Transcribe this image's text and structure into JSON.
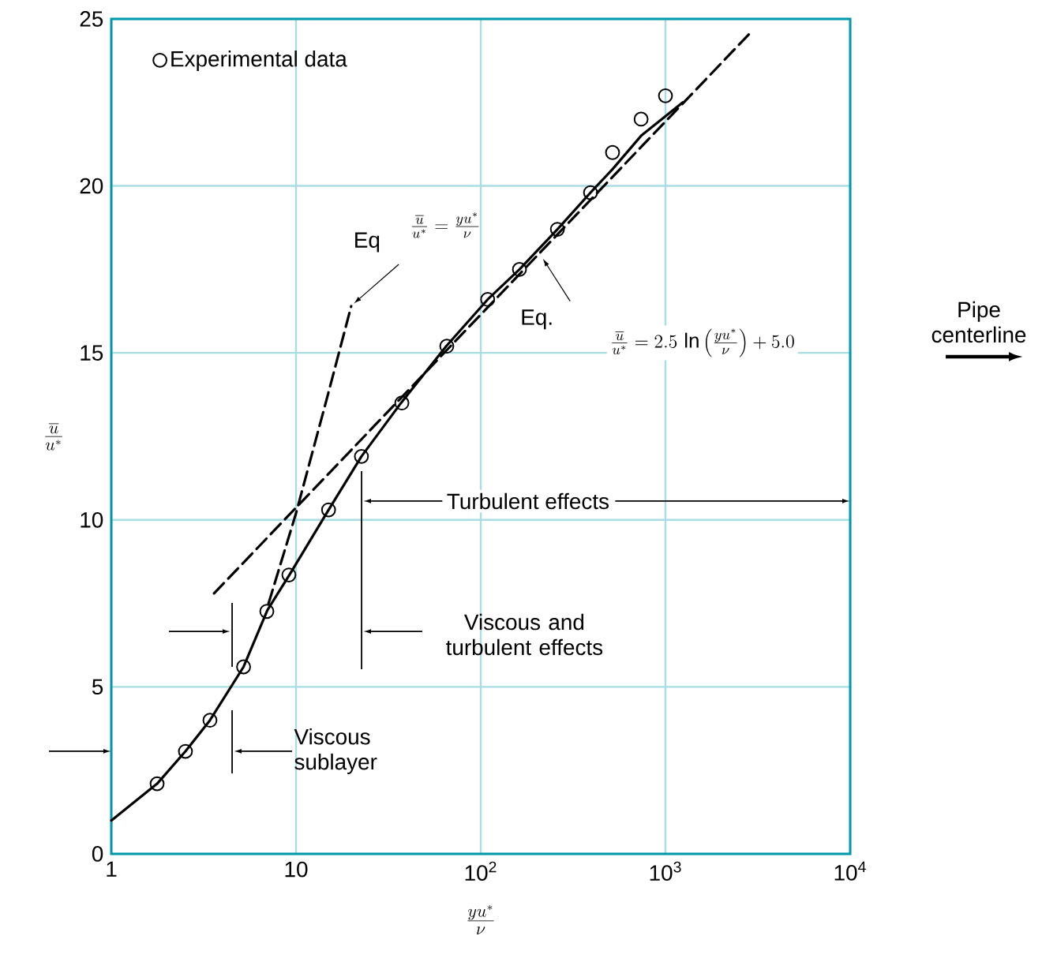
{
  "chart_data": {
    "type": "line",
    "xlabel": "\\frac{yu^*}{\\nu}",
    "ylabel": "\\frac{\\overline{u}}{u^*}",
    "log": "x",
    "grid": true,
    "legend": "top left",
    "xlim": [
      1,
      10000
    ],
    "ylim": [
      0,
      25
    ],
    "xticks": [
      1,
      10,
      {
        "value": 100,
        "label": "10$^{2}$"
      },
      {
        "value": 1000,
        "label": "10$^{3}$"
      },
      {
        "value": 10000,
        "label": "10$^{4}$"
      }
    ],
    "yticks": [
      0,
      5,
      10,
      15,
      20,
      25
    ],
    "series": [
      {
        "name": "Experimental data",
        "type": "scatter",
        "marker": "circle",
        "color": "#000000",
        "x": [
          1.77,
          2.52,
          3.42,
          5.2,
          6.95,
          9.15,
          15,
          22.6,
          37.4,
          65.5,
          109,
          162,
          260,
          393,
          517,
          738,
          1000
        ],
        "values": [
          2.1,
          3.07,
          4.0,
          5.6,
          7.26,
          8.35,
          10.3,
          11.9,
          13.5,
          15.2,
          16.6,
          17.5,
          18.7,
          19.8,
          21.0,
          22.0,
          22.7
        ]
      },
      {
        "line_style": "solid",
        "color": "#000000",
        "x": [
          1,
          1.77,
          2.52,
          3.42,
          5.2,
          7.0,
          9.2,
          15,
          22.6,
          37,
          65,
          109,
          162,
          260,
          393,
          517,
          738,
          1240
        ],
        "values": [
          1.0,
          2.1,
          3.07,
          4.0,
          5.6,
          7.3,
          8.35,
          10.3,
          11.9,
          13.5,
          15.2,
          16.6,
          17.5,
          18.7,
          19.8,
          20.5,
          21.5,
          22.5
        ]
      },
      {
        "line_style": "dashed",
        "color": "#000000",
        "x": [
          7.1,
          10,
          14.8,
          19.9
        ],
        "values": [
          7.5,
          10.2,
          13.7,
          16.4
        ]
      },
      {
        "line_style": "dashed",
        "color": "#000000",
        "x": [
          3.6,
          2900
        ],
        "values": [
          7.8,
          24.6
        ]
      }
    ],
    "annotations": [
      "Viscous sublayer",
      "Viscous and turbulent effects",
      "Turbulent effects",
      "Pipe centerline",
      "Eq",
      "\\frac{\\overline{u}}{u^*} = \\frac{yu^*}{\\nu}",
      "Eq.",
      "\\frac{\\overline{u}}{u^*} = 2.5\\,\\ln\\left(\\frac{yu^*}{\\nu}\\right) + 5.0"
    ]
  }
}
